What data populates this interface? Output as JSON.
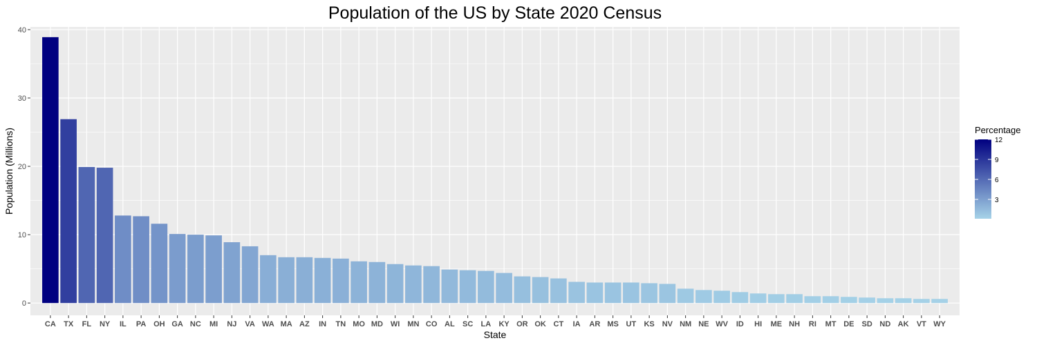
{
  "chart_data": {
    "type": "bar",
    "title": "Population of the US by State 2020 Census",
    "xlabel": "State",
    "ylabel": "Population (Millions)",
    "ylim": [
      -1.8,
      40.4
    ],
    "yticks": [
      0,
      10,
      20,
      30,
      40
    ],
    "grid": true,
    "legend_position": "right",
    "categories": [
      "CA",
      "TX",
      "FL",
      "NY",
      "IL",
      "PA",
      "OH",
      "GA",
      "NC",
      "MI",
      "NJ",
      "VA",
      "WA",
      "MA",
      "AZ",
      "IN",
      "TN",
      "MO",
      "MD",
      "WI",
      "MN",
      "CO",
      "AL",
      "SC",
      "LA",
      "KY",
      "OR",
      "OK",
      "CT",
      "IA",
      "AR",
      "MS",
      "UT",
      "KS",
      "NV",
      "NM",
      "NE",
      "WV",
      "ID",
      "HI",
      "ME",
      "NH",
      "RI",
      "MT",
      "DE",
      "SD",
      "ND",
      "AK",
      "VT",
      "WY"
    ],
    "values": [
      38.9,
      26.9,
      19.9,
      19.8,
      12.8,
      12.7,
      11.6,
      10.1,
      10.0,
      9.9,
      8.9,
      8.3,
      7.0,
      6.7,
      6.7,
      6.6,
      6.5,
      6.1,
      6.0,
      5.7,
      5.5,
      5.4,
      4.9,
      4.8,
      4.7,
      4.4,
      3.9,
      3.8,
      3.6,
      3.1,
      3.0,
      3.0,
      3.0,
      2.9,
      2.8,
      2.1,
      1.9,
      1.8,
      1.6,
      1.4,
      1.3,
      1.3,
      1.0,
      1.0,
      0.9,
      0.8,
      0.7,
      0.7,
      0.6,
      0.6
    ],
    "legend": {
      "title": "Percentage",
      "ticks": [
        "3",
        "6",
        "9",
        "12"
      ],
      "tick_values": [
        3,
        6,
        9,
        12
      ],
      "range": [
        0.1,
        12.0
      ],
      "low_color": "#a6d3e8",
      "high_color": "#000080"
    }
  }
}
